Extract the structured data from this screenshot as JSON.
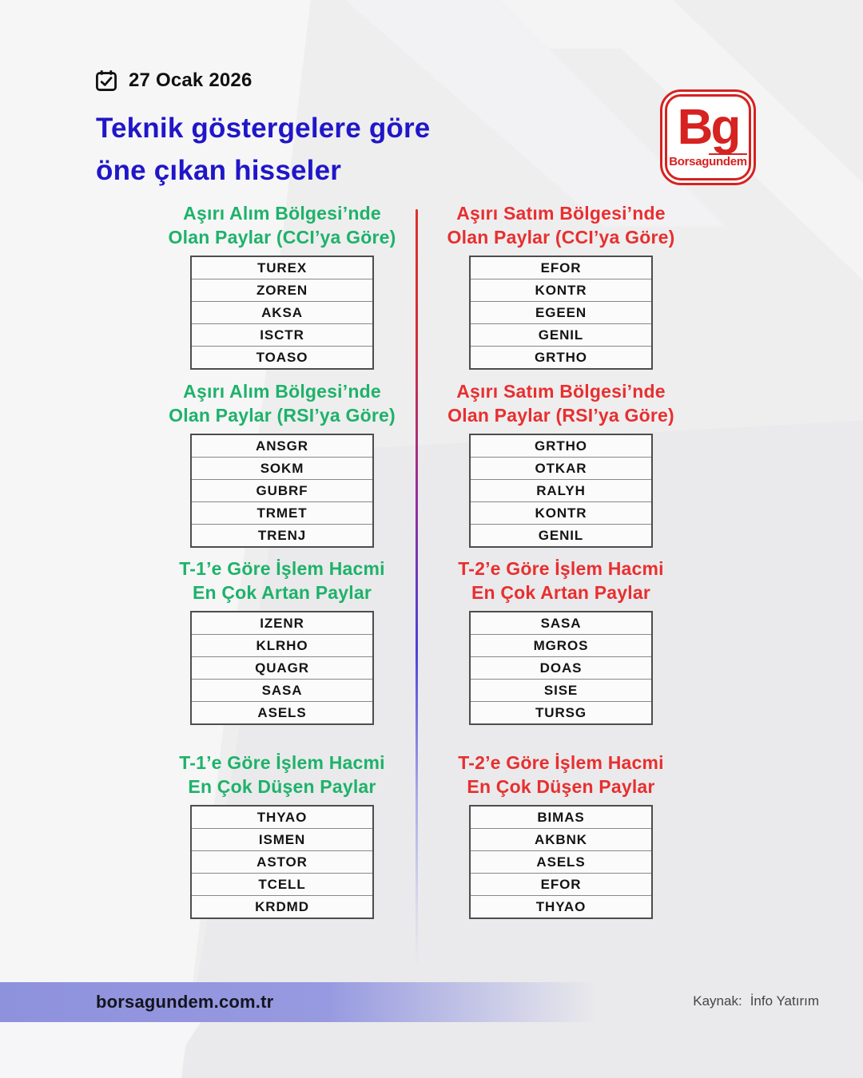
{
  "header": {
    "date_label": "27 Ocak 2026",
    "title_line1": "Teknik göstergelere göre",
    "title_line2": "öne çıkan hisseler"
  },
  "logo": {
    "initials": "Bg",
    "name_prefix": "Borsag",
    "name_overline": "undem"
  },
  "sections": [
    {
      "id": "cci-asiri-alim",
      "column": "left",
      "accent": "#1eb269",
      "title_line1": "Aşırı Alım Bölgesi’nde",
      "title_line2": "Olan Paylar (CCI’ya Göre)",
      "stocks": [
        "TUREX",
        "ZOREN",
        "AKSA",
        "ISCTR",
        "TOASO"
      ]
    },
    {
      "id": "cci-asiri-satim",
      "column": "right",
      "accent": "#e82f2f",
      "title_line1": "Aşırı Satım Bölgesi’nde",
      "title_line2": "Olan Paylar (CCI’ya Göre)",
      "stocks": [
        "EFOR",
        "KONTR",
        "EGEEN",
        "GENIL",
        "GRTHO"
      ]
    },
    {
      "id": "rsi-asiri-alim",
      "column": "left",
      "accent": "#1eb269",
      "title_line1": "Aşırı Alım Bölgesi’nde",
      "title_line2": "Olan Paylar (RSI’ya Göre)",
      "stocks": [
        "ANSGR",
        "SOKM",
        "GUBRF",
        "TRMET",
        "TRENJ"
      ]
    },
    {
      "id": "rsi-asiri-satim",
      "column": "right",
      "accent": "#e82f2f",
      "title_line1": "Aşırı Satım Bölgesi’nde",
      "title_line2": "Olan Paylar (RSI’ya Göre)",
      "stocks": [
        "GRTHO",
        "OTKAR",
        "RALYH",
        "KONTR",
        "GENIL"
      ]
    },
    {
      "id": "t1-hacim-artan",
      "column": "left",
      "accent": "#1eb269",
      "title_line1": "T-1’e Göre İşlem Hacmi",
      "title_line2": "En Çok Artan Paylar",
      "stocks": [
        "IZENR",
        "KLRHO",
        "QUAGR",
        "SASA",
        "ASELS"
      ]
    },
    {
      "id": "t2-hacim-artan",
      "column": "right",
      "accent": "#e82f2f",
      "title_line1": "T-2’e Göre İşlem Hacmi",
      "title_line2": "En Çok Artan Paylar",
      "stocks": [
        "SASA",
        "MGROS",
        "DOAS",
        "SISE",
        "TURSG"
      ]
    },
    {
      "id": "t1-hacim-dusen",
      "column": "left",
      "accent": "#1eb269",
      "title_line1": "T-1’e Göre İşlem Hacmi",
      "title_line2": "En Çok Düşen Paylar",
      "stocks": [
        "THYAO",
        "ISMEN",
        "ASTOR",
        "TCELL",
        "KRDMD"
      ]
    },
    {
      "id": "t2-hacim-dusen",
      "column": "right",
      "accent": "#e82f2f",
      "title_line1": "T-2’e Göre İşlem Hacmi",
      "title_line2": "En Çok Düşen Paylar",
      "stocks": [
        "BIMAS",
        "AKBNK",
        "ASELS",
        "EFOR",
        "THYAO"
      ]
    }
  ],
  "footer": {
    "site": "borsagundem.com.tr",
    "source_label": "Kaynak:",
    "source_value": "İnfo Yatırım"
  },
  "colors": {
    "title_blue": "#2016c8",
    "green_accent": "#1eb269",
    "red_accent": "#e82f2f",
    "logo_red": "#d62220",
    "footer_band": "#8e91dc",
    "divider_top": "#e0302a",
    "divider_bottom": "#4a41d8"
  }
}
